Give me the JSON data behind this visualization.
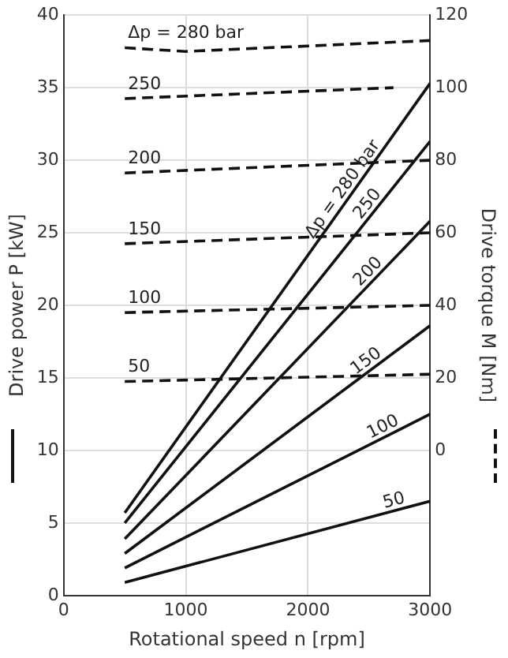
{
  "chart_data": {
    "type": "line",
    "xlabel": "Rotational speed n [rpm]",
    "ylabel": "Drive power P [kW]",
    "y2label": "Drive torque M [Nm]",
    "xlim": [
      0,
      3000
    ],
    "xticks": [
      0,
      1000,
      2000,
      3000
    ],
    "ylim": [
      0,
      40
    ],
    "yticks": [
      0,
      5,
      10,
      15,
      20,
      25,
      30,
      35,
      40
    ],
    "y2lim": [
      -40,
      120
    ],
    "y2ticks": [
      0,
      20,
      40,
      60,
      80,
      100,
      120
    ],
    "grid": true,
    "legend": false,
    "marker": "none",
    "series": [
      {
        "name": "Δp = 280 bar",
        "color": "#111111",
        "line_style": "dashed",
        "axis": "y2",
        "x": [
          500,
          1000,
          3000
        ],
        "values": [
          111,
          110,
          113
        ]
      },
      {
        "name": "250",
        "color": "#111111",
        "line_style": "dashed",
        "axis": "y2",
        "x": [
          500,
          2700
        ],
        "values": [
          97,
          100
        ]
      },
      {
        "name": "200",
        "color": "#111111",
        "line_style": "dashed",
        "axis": "y2",
        "x": [
          500,
          3000
        ],
        "values": [
          76.5,
          80
        ]
      },
      {
        "name": "150",
        "color": "#111111",
        "line_style": "dashed",
        "axis": "y2",
        "x": [
          500,
          3000
        ],
        "values": [
          57,
          60
        ]
      },
      {
        "name": "100",
        "color": "#111111",
        "line_style": "dashed",
        "axis": "y2",
        "x": [
          500,
          3000
        ],
        "values": [
          38,
          40
        ]
      },
      {
        "name": "50",
        "color": "#111111",
        "line_style": "dashed",
        "axis": "y2",
        "x": [
          500,
          3000
        ],
        "values": [
          19,
          21
        ]
      },
      {
        "name": "Δp = 280 bar",
        "color": "#111111",
        "line_style": "solid",
        "x": [
          500,
          3000
        ],
        "values": [
          5.7,
          35.3
        ]
      },
      {
        "name": "250",
        "color": "#111111",
        "line_style": "solid",
        "x": [
          500,
          3000
        ],
        "values": [
          5.0,
          31.3
        ]
      },
      {
        "name": "200",
        "color": "#111111",
        "line_style": "solid",
        "x": [
          500,
          3000
        ],
        "values": [
          3.9,
          25.8
        ]
      },
      {
        "name": "150",
        "color": "#111111",
        "line_style": "solid",
        "x": [
          500,
          3000
        ],
        "values": [
          2.9,
          18.6
        ]
      },
      {
        "name": "100",
        "color": "#111111",
        "line_style": "solid",
        "x": [
          500,
          3000
        ],
        "values": [
          1.9,
          12.5
        ]
      },
      {
        "name": "50",
        "color": "#111111",
        "line_style": "solid",
        "x": [
          500,
          3000
        ],
        "values": [
          0.9,
          6.5
        ]
      }
    ]
  }
}
